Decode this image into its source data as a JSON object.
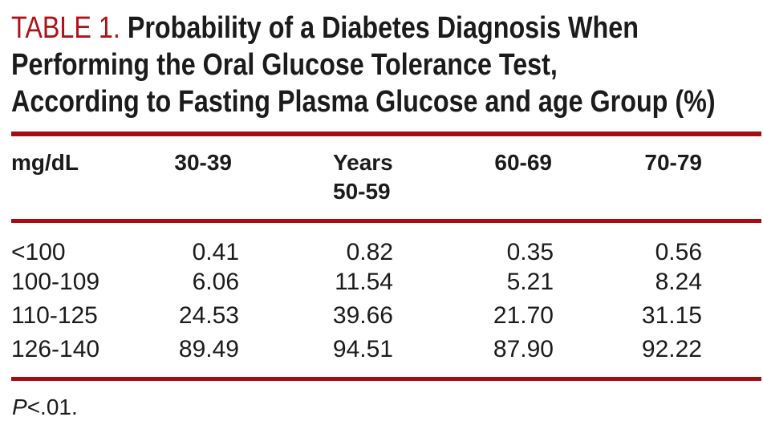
{
  "title": {
    "label": "TABLE 1.",
    "lines": [
      "Probability of a Diabetes Diagnosis When",
      "Performing the Oral Glucose Tolerance Test,",
      "According to Fasting Plasma Glucose and age Group (%)"
    ]
  },
  "table": {
    "unit_header": "mg/dL",
    "age_group_headers": {
      "col1": "30-39",
      "col2_line1": "Years",
      "col2_line2": "50-59",
      "col3": "60-69",
      "col4": "70-79"
    },
    "rows": [
      {
        "label": "<100",
        "values": [
          "0.41",
          "0.82",
          "0.35",
          "0.56"
        ]
      },
      {
        "label": "100-109",
        "values": [
          "6.06",
          "11.54",
          "5.21",
          "8.24"
        ]
      },
      {
        "label": "110-125",
        "values": [
          "24.53",
          "39.66",
          "21.70",
          "31.15"
        ]
      },
      {
        "label": "126-140",
        "values": [
          "89.49",
          "94.51",
          "87.90",
          "92.22"
        ]
      }
    ]
  },
  "footnote": {
    "p_label": "P",
    "rest": "<.01."
  },
  "colors": {
    "title_red": "#B01219",
    "rule_red": "#A60D12",
    "text": "#1b1b1b",
    "background": "#FFFFFF"
  }
}
